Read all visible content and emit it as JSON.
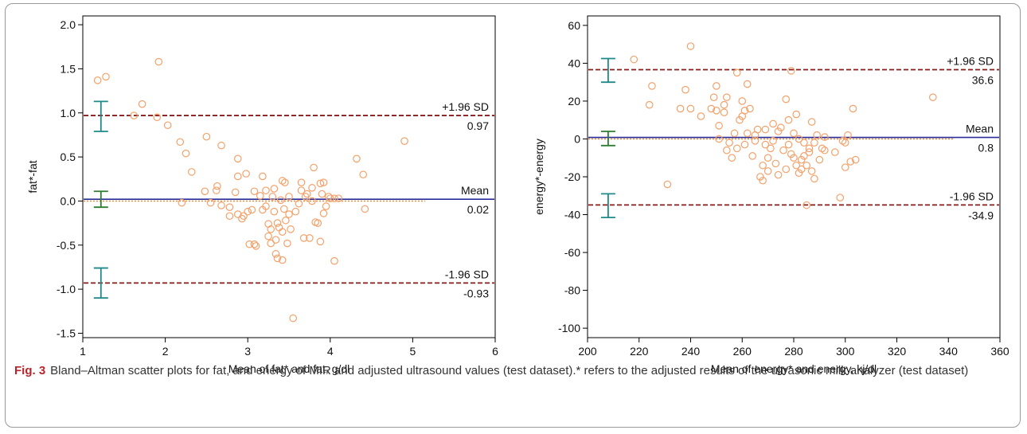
{
  "caption": {
    "label": "Fig. 3",
    "text": "Bland–Altman scatter plots for fat, and energy of MIR and adjusted ultrasound values (test dataset).* refers to the adjusted results of the ultrasonic milk analyzer (test dataset)"
  },
  "colors": {
    "points": "#f4a16a",
    "loa_line": "#8b1a1a",
    "mean_line": "#2b2b9a",
    "zero_line": "#f08a3a",
    "loa_ci": "#1f8a8a",
    "mean_ci": "#2e7d32"
  },
  "chart_data": [
    {
      "type": "scatter",
      "xlabel": "Mean of fat* and fat, g/dl",
      "ylabel": "fat*-fat",
      "xlim": [
        1,
        6
      ],
      "ylim": [
        -1.55,
        2.1
      ],
      "xticks": [
        1,
        2,
        3,
        4,
        5,
        6
      ],
      "yticks": [
        -1.5,
        -1.0,
        -0.5,
        0.0,
        0.5,
        1.0,
        1.5,
        2.0
      ],
      "ytick_labels": [
        "-1.5",
        "-1.0",
        "-0.5",
        "0.0",
        "0.5",
        "1.0",
        "1.5",
        "2.0"
      ],
      "xtick_labels": [
        "1",
        "2",
        "3",
        "4",
        "5",
        "6"
      ],
      "grid": false,
      "mean": 0.02,
      "upper_loa": 0.97,
      "lower_loa": -0.93,
      "ci_x": 1.22,
      "upper_ci": [
        0.79,
        1.13
      ],
      "mean_ci": [
        -0.07,
        0.11
      ],
      "lower_ci": [
        -1.1,
        -0.76
      ],
      "reference_lines": [
        {
          "name": "+1.96 SD",
          "value_label": "0.97"
        },
        {
          "name": "Mean",
          "value_label": "0.02"
        },
        {
          "name": "-1.96 SD",
          "value_label": "-0.93"
        }
      ],
      "points": [
        [
          1.18,
          1.37
        ],
        [
          1.28,
          1.41
        ],
        [
          1.62,
          0.97
        ],
        [
          1.72,
          1.1
        ],
        [
          1.9,
          0.95
        ],
        [
          1.92,
          1.58
        ],
        [
          2.03,
          0.86
        ],
        [
          2.18,
          0.67
        ],
        [
          2.25,
          0.54
        ],
        [
          2.32,
          0.33
        ],
        [
          2.2,
          -0.02
        ],
        [
          2.48,
          0.11
        ],
        [
          2.5,
          0.73
        ],
        [
          2.55,
          -0.02
        ],
        [
          2.62,
          0.12
        ],
        [
          2.63,
          0.17
        ],
        [
          2.68,
          0.63
        ],
        [
          2.68,
          -0.05
        ],
        [
          2.78,
          -0.07
        ],
        [
          2.78,
          -0.17
        ],
        [
          2.85,
          0.1
        ],
        [
          2.88,
          0.28
        ],
        [
          2.88,
          0.48
        ],
        [
          2.88,
          -0.15
        ],
        [
          2.93,
          -0.2
        ],
        [
          2.95,
          -0.17
        ],
        [
          2.98,
          0.31
        ],
        [
          3.0,
          -0.12
        ],
        [
          3.02,
          -0.49
        ],
        [
          3.05,
          -0.1
        ],
        [
          3.08,
          0.11
        ],
        [
          3.08,
          -0.49
        ],
        [
          3.1,
          -0.51
        ],
        [
          3.15,
          0.06
        ],
        [
          3.18,
          0.28
        ],
        [
          3.18,
          -0.1
        ],
        [
          3.22,
          0.12
        ],
        [
          3.22,
          -0.06
        ],
        [
          3.25,
          -0.4
        ],
        [
          3.25,
          -0.26
        ],
        [
          3.28,
          -0.32
        ],
        [
          3.28,
          -0.48
        ],
        [
          3.3,
          0.05
        ],
        [
          3.32,
          -0.12
        ],
        [
          3.32,
          0.14
        ],
        [
          3.34,
          -0.6
        ],
        [
          3.34,
          -0.44
        ],
        [
          3.36,
          -0.65
        ],
        [
          3.36,
          -0.25
        ],
        [
          3.38,
          -0.3
        ],
        [
          3.4,
          0.01
        ],
        [
          3.42,
          -0.35
        ],
        [
          3.42,
          0.23
        ],
        [
          3.42,
          -0.67
        ],
        [
          3.44,
          -0.09
        ],
        [
          3.45,
          0.21
        ],
        [
          3.46,
          -0.22
        ],
        [
          3.48,
          -0.48
        ],
        [
          3.5,
          -0.15
        ],
        [
          3.5,
          0.05
        ],
        [
          3.52,
          -0.32
        ],
        [
          3.55,
          -1.33
        ],
        [
          3.58,
          -0.12
        ],
        [
          3.62,
          -0.03
        ],
        [
          3.65,
          0.21
        ],
        [
          3.65,
          0.12
        ],
        [
          3.68,
          -0.42
        ],
        [
          3.7,
          0.05
        ],
        [
          3.72,
          0.08
        ],
        [
          3.75,
          -0.42
        ],
        [
          3.78,
          0.15
        ],
        [
          3.78,
          0.0
        ],
        [
          3.8,
          0.38
        ],
        [
          3.82,
          -0.24
        ],
        [
          3.85,
          -0.25
        ],
        [
          3.88,
          -0.46
        ],
        [
          3.88,
          0.2
        ],
        [
          3.9,
          0.08
        ],
        [
          3.92,
          0.21
        ],
        [
          3.92,
          -0.14
        ],
        [
          3.95,
          -0.06
        ],
        [
          3.98,
          0.05
        ],
        [
          4.0,
          0.03
        ],
        [
          4.05,
          0.03
        ],
        [
          4.05,
          -0.68
        ],
        [
          4.1,
          0.03
        ],
        [
          4.32,
          0.48
        ],
        [
          4.4,
          0.3
        ],
        [
          4.42,
          -0.09
        ],
        [
          4.9,
          0.68
        ]
      ]
    },
    {
      "type": "scatter",
      "xlabel": "Mean of energy* and energy, kj/dl",
      "ylabel": "energy*-energy",
      "xlim": [
        200,
        360
      ],
      "ylim": [
        -105,
        65
      ],
      "xticks": [
        200,
        220,
        240,
        260,
        280,
        300,
        320,
        340,
        360
      ],
      "xtick_labels": [
        "200",
        "220",
        "240",
        "260",
        "280",
        "300",
        "320",
        "340",
        "360"
      ],
      "yticks": [
        -100,
        -80,
        -60,
        -40,
        -20,
        0,
        20,
        40,
        60
      ],
      "ytick_labels": [
        "-100",
        "-80",
        "-60",
        "-40",
        "-20",
        "0",
        "20",
        "40",
        "60"
      ],
      "grid": false,
      "mean": 0.8,
      "upper_loa": 36.6,
      "lower_loa": -34.9,
      "ci_x": 208,
      "upper_ci": [
        30,
        42.5
      ],
      "mean_ci": [
        -3.5,
        4
      ],
      "lower_ci": [
        -41.5,
        -29
      ],
      "reference_lines": [
        {
          "name": "+1.96 SD",
          "value_label": "36.6"
        },
        {
          "name": "Mean",
          "value_label": "0.8"
        },
        {
          "name": "-1.96 SD",
          "value_label": "-34.9"
        }
      ],
      "points": [
        [
          218,
          42
        ],
        [
          224,
          18
        ],
        [
          225,
          28
        ],
        [
          231,
          -24
        ],
        [
          236,
          16
        ],
        [
          238,
          26
        ],
        [
          240,
          49
        ],
        [
          240,
          16
        ],
        [
          244,
          12
        ],
        [
          248,
          16
        ],
        [
          249,
          22
        ],
        [
          250,
          15
        ],
        [
          250,
          28
        ],
        [
          251,
          7
        ],
        [
          251,
          0
        ],
        [
          253,
          18
        ],
        [
          253,
          14
        ],
        [
          254,
          22
        ],
        [
          254,
          -6
        ],
        [
          255,
          -2
        ],
        [
          256,
          -10
        ],
        [
          257,
          3
        ],
        [
          258,
          -5
        ],
        [
          258,
          35
        ],
        [
          259,
          10
        ],
        [
          260,
          12
        ],
        [
          260,
          20
        ],
        [
          261,
          15
        ],
        [
          261,
          -3
        ],
        [
          262,
          29
        ],
        [
          262,
          3
        ],
        [
          263,
          16
        ],
        [
          264,
          -9
        ],
        [
          265,
          -1
        ],
        [
          265,
          2
        ],
        [
          266,
          5
        ],
        [
          267,
          -20
        ],
        [
          268,
          -22
        ],
        [
          268,
          -14
        ],
        [
          269,
          -3
        ],
        [
          269,
          5
        ],
        [
          270,
          -10
        ],
        [
          270,
          -17
        ],
        [
          271,
          -5
        ],
        [
          272,
          -1
        ],
        [
          272,
          8
        ],
        [
          273,
          -13
        ],
        [
          274,
          4
        ],
        [
          274,
          -19
        ],
        [
          275,
          6
        ],
        [
          276,
          -6
        ],
        [
          277,
          -16
        ],
        [
          277,
          21
        ],
        [
          278,
          -3
        ],
        [
          278,
          10
        ],
        [
          279,
          36
        ],
        [
          279,
          -8
        ],
        [
          280,
          3
        ],
        [
          280,
          -10
        ],
        [
          281,
          -14
        ],
        [
          281,
          13
        ],
        [
          282,
          -18
        ],
        [
          282,
          0
        ],
        [
          283,
          -11
        ],
        [
          283,
          -16
        ],
        [
          284,
          -2
        ],
        [
          284,
          -9
        ],
        [
          285,
          -35
        ],
        [
          285,
          -14
        ],
        [
          286,
          -5
        ],
        [
          286,
          -7
        ],
        [
          287,
          9
        ],
        [
          287,
          -17
        ],
        [
          288,
          -21
        ],
        [
          288,
          -2
        ],
        [
          289,
          2
        ],
        [
          290,
          -11
        ],
        [
          291,
          -5
        ],
        [
          292,
          1
        ],
        [
          292,
          -6
        ],
        [
          296,
          -7
        ],
        [
          298,
          -31
        ],
        [
          299,
          -1
        ],
        [
          300,
          -15
        ],
        [
          300,
          -2
        ],
        [
          301,
          2
        ],
        [
          302,
          -12
        ],
        [
          303,
          16
        ],
        [
          304,
          -11
        ],
        [
          334,
          22
        ]
      ]
    }
  ]
}
